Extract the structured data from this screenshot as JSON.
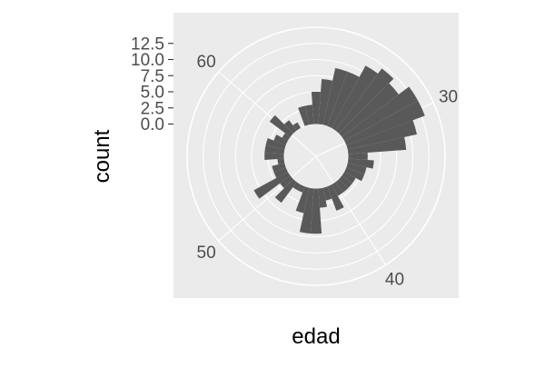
{
  "chart_data": {
    "type": "bar",
    "coord": "polar",
    "xlabel": "edad",
    "ylabel": "count",
    "x_range": [
      22,
      66
    ],
    "ylim": [
      -5,
      15
    ],
    "y_ticks": [
      0.0,
      2.5,
      5.0,
      7.5,
      10.0,
      12.5
    ],
    "y_tick_labels": [
      "0.0",
      "2.5",
      "5.0",
      "7.5",
      "10.0",
      "12.5"
    ],
    "x_ticks": [
      30,
      40,
      50,
      60
    ],
    "x_tick_labels": [
      "30",
      "40",
      "50",
      "60"
    ],
    "bar_width": 1,
    "x": [
      22,
      23,
      24,
      25,
      26,
      27,
      28,
      29,
      30,
      31,
      32,
      33,
      34,
      35,
      36,
      37,
      38,
      39,
      40,
      41,
      42,
      43,
      44,
      45,
      46,
      47,
      48,
      49,
      50,
      51,
      52,
      53,
      54,
      55,
      56,
      57,
      58,
      59,
      60,
      61,
      62,
      63,
      64,
      65
    ],
    "values": [
      5,
      7,
      9,
      9,
      11,
      12,
      11,
      13,
      13,
      11,
      9,
      3,
      4,
      3,
      3,
      2,
      2,
      2,
      2,
      4,
      2,
      3,
      7,
      7,
      4,
      1,
      1,
      4,
      2,
      6,
      2,
      2,
      1,
      3,
      3,
      3,
      2,
      1,
      4,
      2,
      1,
      0,
      3,
      3
    ],
    "grid": true,
    "colors": {
      "bar": "#595959",
      "panel": "#ebebeb",
      "grid": "#ffffff",
      "tick_text": "#4d4d4d",
      "axis_title": "#000000"
    }
  }
}
